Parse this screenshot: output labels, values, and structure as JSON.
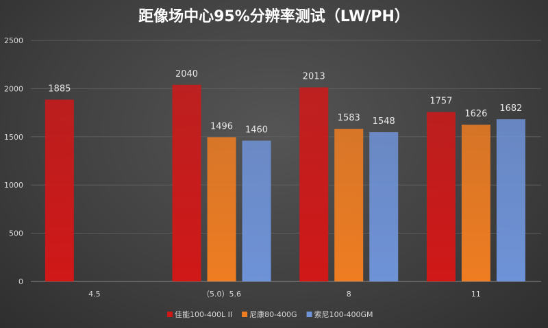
{
  "chart_data": {
    "type": "bar",
    "title": "距像场中心95%分辨率测试（LW/PH）",
    "xlabel": "",
    "ylabel": "",
    "ylim": [
      0,
      2500
    ],
    "yticks": [
      0,
      500,
      1000,
      1500,
      2000,
      2500
    ],
    "grid": true,
    "legend_position": "bottom",
    "categories": [
      "4.5",
      "（5.0）5.6",
      "8",
      "11"
    ],
    "series": [
      {
        "name": "佳能100-400L II",
        "color": "#d01818",
        "values": [
          1885,
          2040,
          2013,
          1757
        ]
      },
      {
        "name": "尼康80-400G",
        "color": "#ef7d22",
        "values": [
          null,
          1496,
          1583,
          1626
        ]
      },
      {
        "name": "索尼100-400GM",
        "color": "#6f93d8",
        "values": [
          null,
          1460,
          1548,
          1682
        ]
      }
    ]
  }
}
